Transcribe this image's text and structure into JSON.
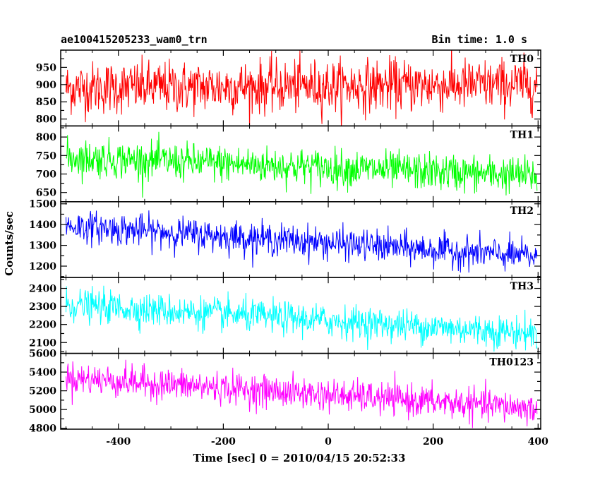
{
  "chart_data": {
    "type": "line",
    "title_left": "ae100415205233_wam0_trn",
    "title_right": "Bin time: 1.0 s",
    "xlabel": "Time [sec] 0 = 2010/04/15 20:52:33",
    "ylabel": "Counts/sec",
    "xlim": [
      -510,
      405
    ],
    "x_ticks": [
      -400,
      -200,
      0,
      200,
      400
    ],
    "bin_time_s": 1.0,
    "panels": [
      {
        "name": "TH0",
        "color": "#ff0000",
        "ylim": [
          780,
          1000
        ],
        "y_ticks": [
          800,
          850,
          900,
          950
        ],
        "trend_start": 890,
        "trend_end": 900,
        "noise_sd": 38
      },
      {
        "name": "TH1",
        "color": "#00ff00",
        "ylim": [
          625,
          830
        ],
        "y_ticks": [
          650,
          700,
          750,
          800
        ],
        "trend_start": 745,
        "trend_end": 695,
        "noise_sd": 25
      },
      {
        "name": "TH2",
        "color": "#0000ff",
        "ylim": [
          1145,
          1510
        ],
        "y_ticks": [
          1200,
          1300,
          1400,
          1500
        ],
        "trend_start": 1395,
        "trend_end": 1245,
        "noise_sd": 38
      },
      {
        "name": "TH3",
        "color": "#00ffff",
        "ylim": [
          2040,
          2460
        ],
        "y_ticks": [
          2100,
          2200,
          2300,
          2400
        ],
        "trend_start": 2310,
        "trend_end": 2150,
        "noise_sd": 45
      },
      {
        "name": "TH0123",
        "color": "#ff00ff",
        "ylim": [
          4790,
          5600
        ],
        "y_ticks": [
          4800,
          5000,
          5200,
          5400,
          5600
        ],
        "trend_start": 5340,
        "trend_end": 5010,
        "noise_sd": 85
      }
    ]
  }
}
